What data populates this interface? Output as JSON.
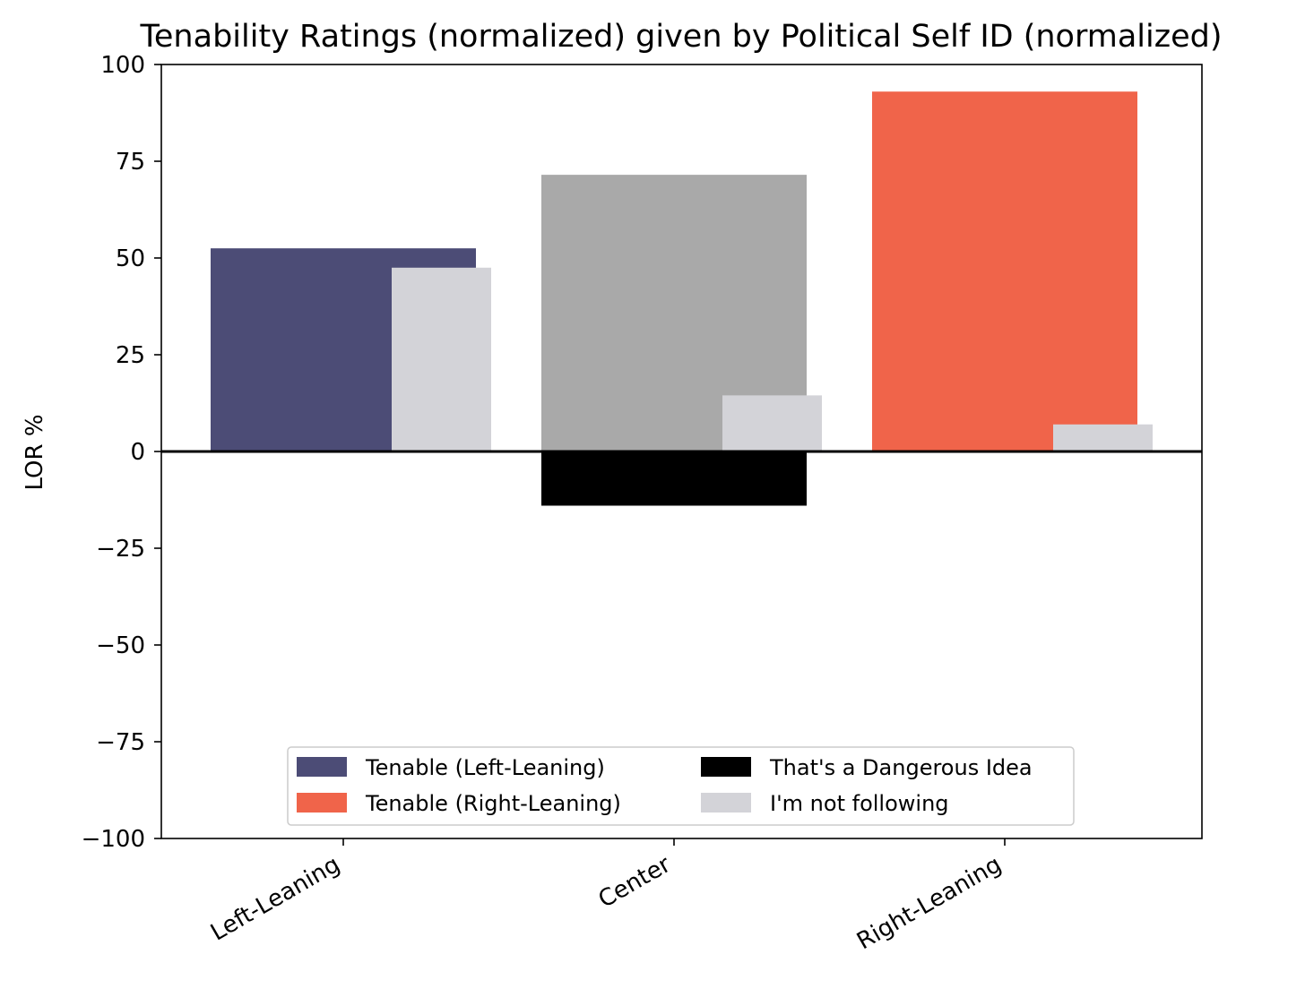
{
  "chart_data": {
    "type": "bar",
    "title": "Tenability Ratings (normalized) given by Political Self ID (normalized)",
    "xlabel": "",
    "ylabel": "LOR %",
    "ylim": [
      -100,
      100
    ],
    "yticks": [
      100,
      75,
      50,
      25,
      0,
      -25,
      -50,
      -75,
      -100
    ],
    "ytick_labels": [
      "100",
      "75",
      "50",
      "25",
      "0",
      "−25",
      "−50",
      "−75",
      "−100"
    ],
    "categories": [
      "Left-Leaning",
      "Center",
      "Right-Leaning"
    ],
    "tenable": {
      "values": [
        52.5,
        71.5,
        93
      ],
      "colors": [
        "#4c4c76",
        "#a9a9a9",
        "#f0644a"
      ]
    },
    "dangerous": {
      "values": [
        0,
        -14,
        0
      ],
      "color": "#000000"
    },
    "not_following": {
      "values": [
        47.5,
        14.5,
        7
      ],
      "color": "#d3d3d8"
    },
    "legend": {
      "location": "lower-center",
      "entries": [
        {
          "label": "Tenable (Left-Leaning)",
          "color": "#4c4c76"
        },
        {
          "label": "That's a Dangerous Idea",
          "color": "#000000"
        },
        {
          "label": "Tenable (Right-Leaning)",
          "color": "#f0644a"
        },
        {
          "label": "I'm not following",
          "color": "#d3d3d8"
        }
      ]
    }
  }
}
